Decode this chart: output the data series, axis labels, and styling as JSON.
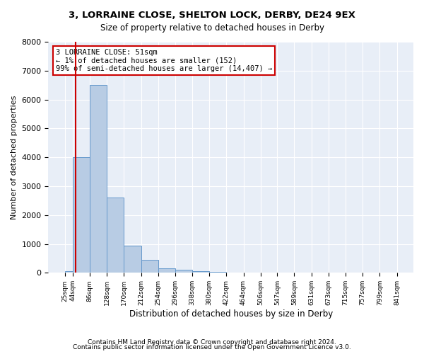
{
  "title1": "3, LORRAINE CLOSE, SHELTON LOCK, DERBY, DE24 9EX",
  "title2": "Size of property relative to detached houses in Derby",
  "xlabel": "Distribution of detached houses by size in Derby",
  "ylabel": "Number of detached properties",
  "footer1": "Contains HM Land Registry data © Crown copyright and database right 2024.",
  "footer2": "Contains public sector information licensed under the Open Government Licence v3.0.",
  "annotation_line1": "3 LORRAINE CLOSE: 51sqm",
  "annotation_line2": "← 1% of detached houses are smaller (152)",
  "annotation_line3": "99% of semi-detached houses are larger (14,407) →",
  "vline_x": 51,
  "bar_color": "#b8cce4",
  "bar_edge_color": "#6699cc",
  "vline_color": "#cc0000",
  "annotation_box_color": "#cc0000",
  "background_color": "#e8eef7",
  "bins": [
    25,
    44,
    86,
    128,
    170,
    212,
    254,
    296,
    338,
    380,
    422,
    464,
    506,
    547,
    589,
    631,
    673,
    715,
    757,
    799,
    841
  ],
  "bin_labels": [
    "25sqm",
    "44sqm",
    "86sqm",
    "128sqm",
    "170sqm",
    "212sqm",
    "254sqm",
    "296sqm",
    "338sqm",
    "380sqm",
    "422sqm",
    "464sqm",
    "506sqm",
    "547sqm",
    "589sqm",
    "631sqm",
    "673sqm",
    "715sqm",
    "757sqm",
    "799sqm",
    "841sqm"
  ],
  "values": [
    50,
    4000,
    6500,
    2600,
    950,
    450,
    150,
    100,
    60,
    40,
    20,
    10,
    5,
    3,
    2,
    1,
    1,
    0,
    0,
    0
  ],
  "ylim": [
    0,
    8000
  ],
  "yticks": [
    0,
    1000,
    2000,
    3000,
    4000,
    5000,
    6000,
    7000,
    8000
  ]
}
